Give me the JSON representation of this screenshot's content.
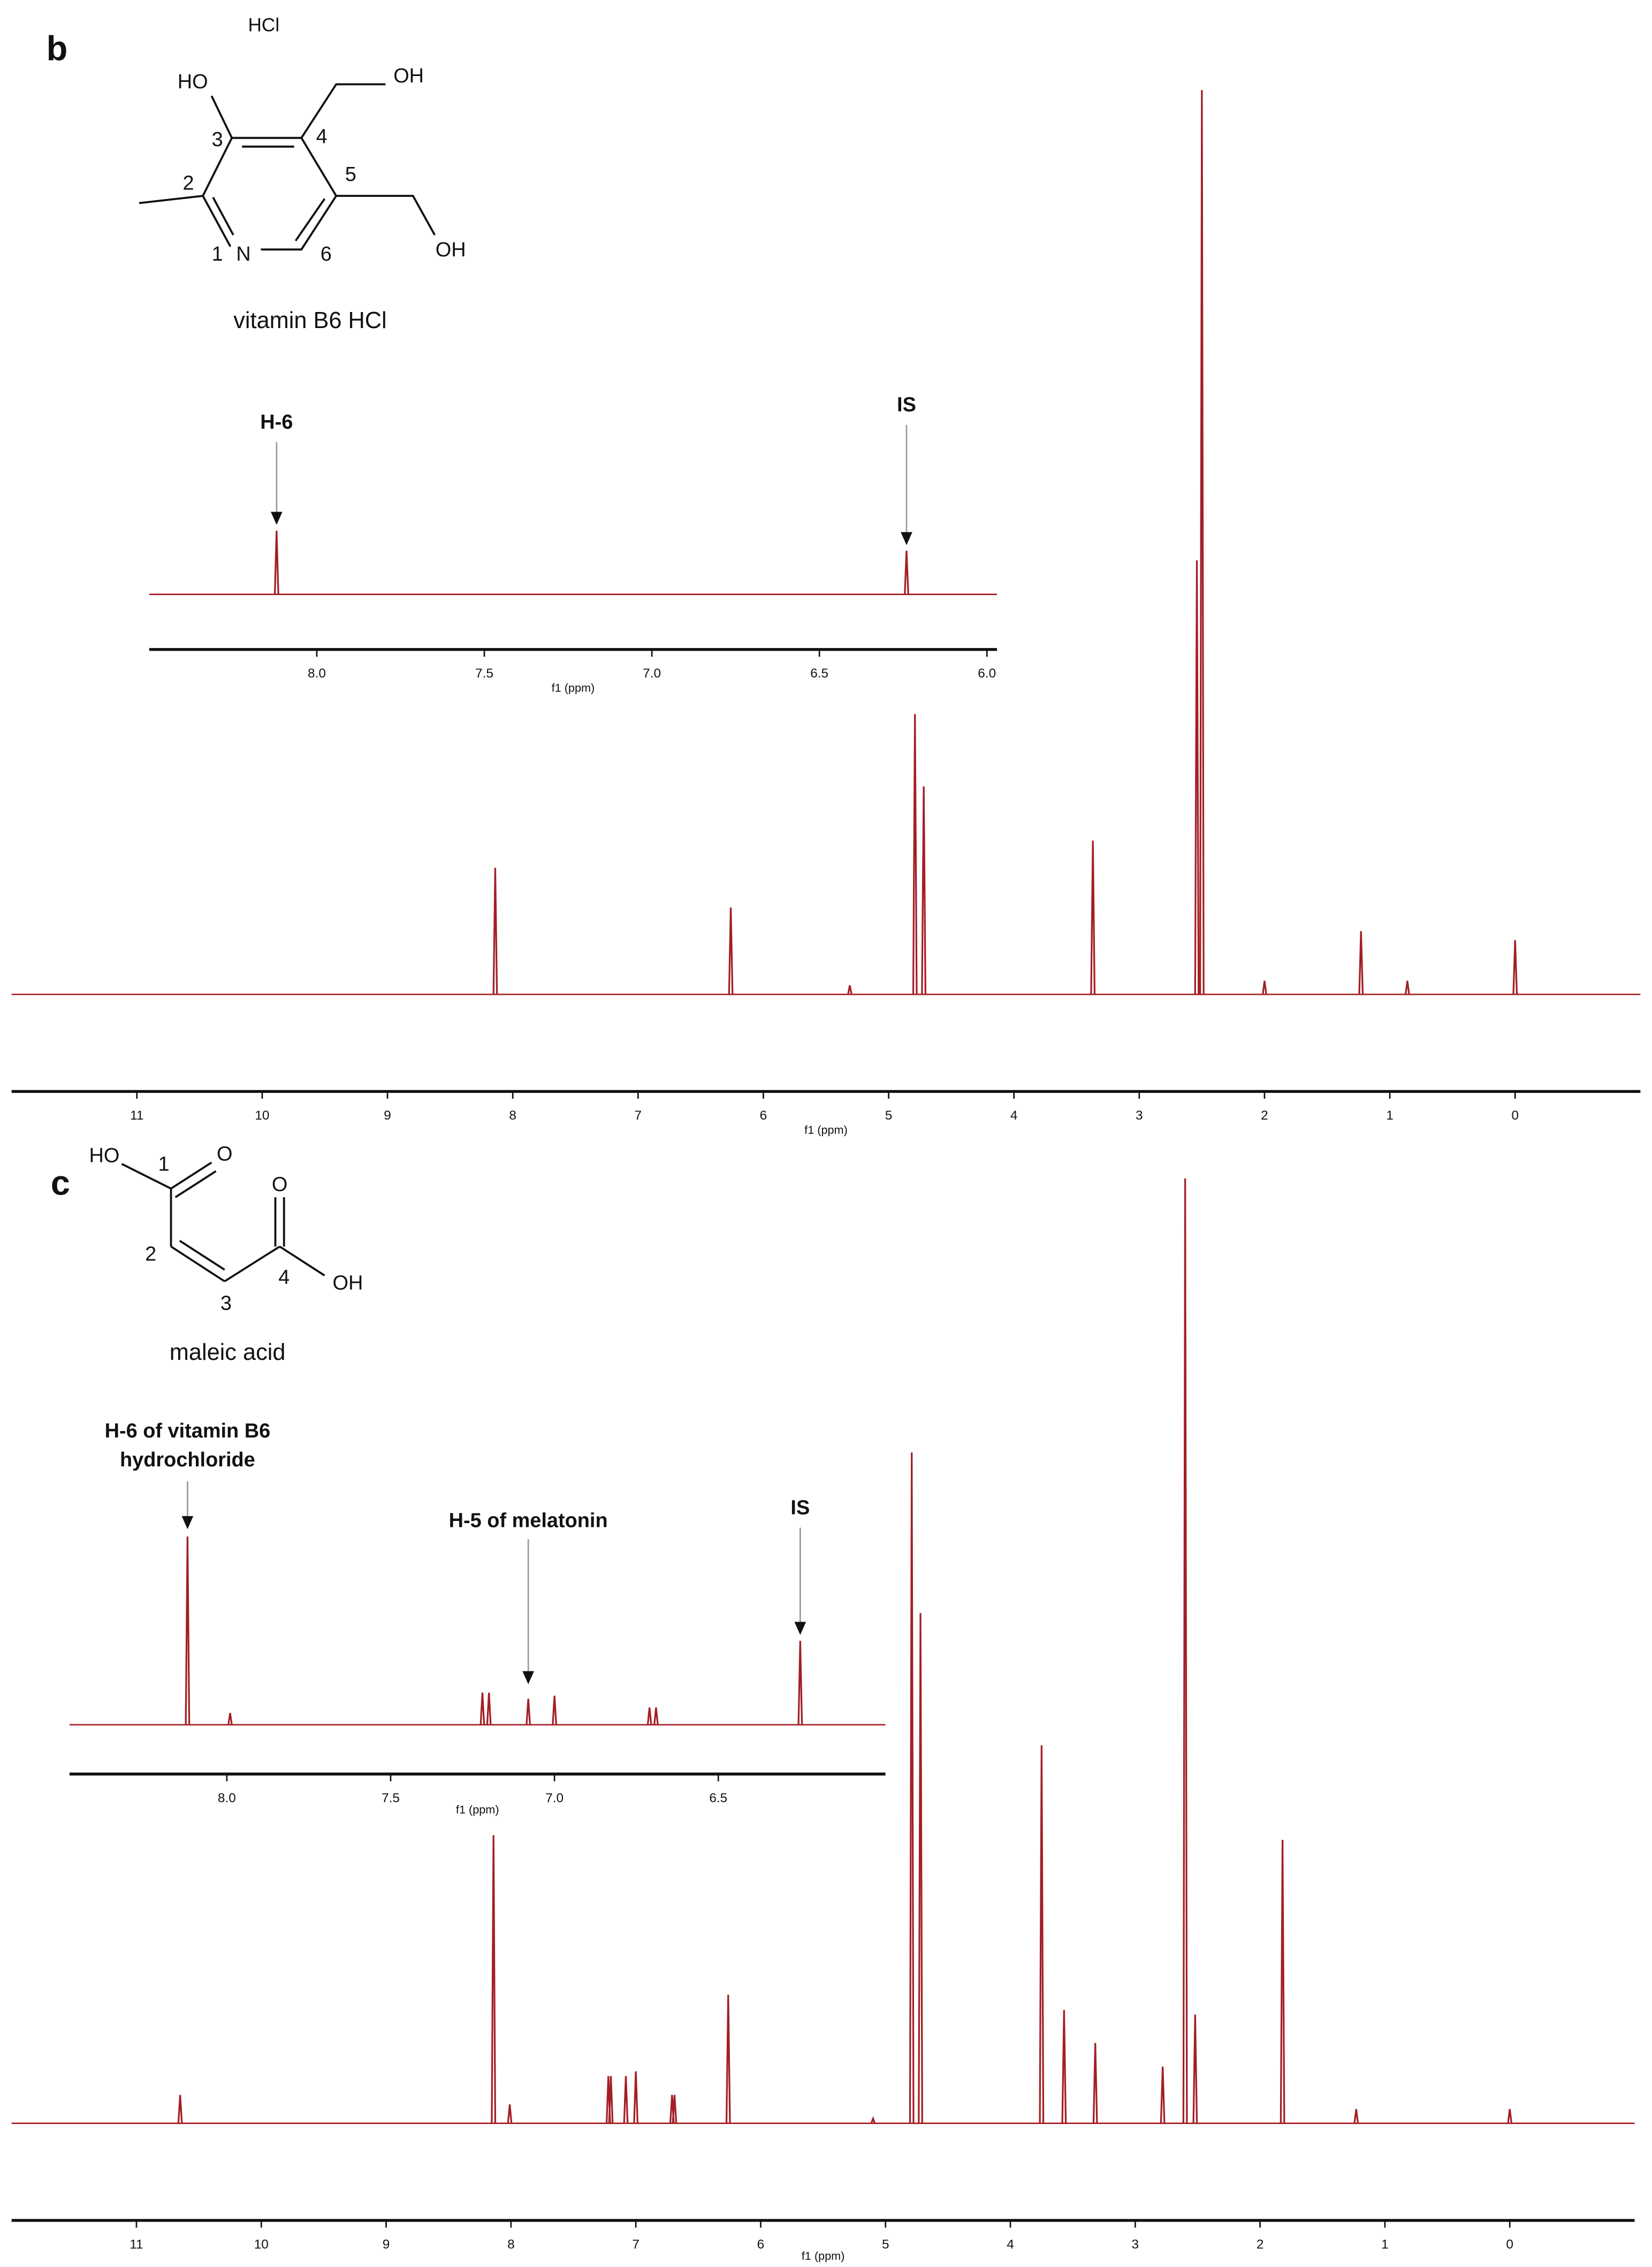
{
  "figure": {
    "panels": [
      {
        "label": "b",
        "compound": "vitamin B6 HCl",
        "atom_labels": [
          "HCl",
          "HO",
          "OH",
          "OH",
          "3",
          "4",
          "2",
          "5",
          "1",
          "N",
          "6"
        ]
      },
      {
        "label": "c",
        "compound": "maleic acid",
        "atom_labels": [
          "HO",
          "1",
          "O",
          "O",
          "2",
          "4",
          "OH",
          "3"
        ]
      }
    ]
  },
  "chart_data": [
    {
      "type": "spectrum",
      "xlabel": "f1 (ppm)",
      "xlim": [
        12,
        -1
      ],
      "xticks": [
        11,
        10,
        9,
        8,
        7,
        6,
        5,
        4,
        3,
        2,
        1,
        0
      ],
      "ylim": [
        0,
        100
      ],
      "color": "#a31f24",
      "x": [
        8.14,
        6.26,
        5.31,
        4.79,
        4.72,
        3.37,
        2.54,
        2.5,
        2.0,
        1.23,
        0.86,
        0.0
      ],
      "values": [
        14,
        9.6,
        1,
        31,
        23,
        17,
        48,
        100,
        1.5,
        7,
        1.5,
        6
      ]
    },
    {
      "type": "spectrum",
      "xlabel": "f1 (ppm)",
      "xlim": [
        8.5,
        5.97
      ],
      "xticks": [
        {
          "value": 8,
          "label": "8.0"
        },
        7.5,
        {
          "value": 7,
          "label": "7.0"
        },
        6.5,
        {
          "value": 6,
          "label": "6.0"
        }
      ],
      "ylim": [
        0,
        100
      ],
      "color": "#a31f24",
      "x": [
        8.12,
        6.24
      ],
      "values": [
        14,
        9.6
      ],
      "annotations": [
        {
          "lines": [
            "H-6"
          ],
          "x": 8.12
        },
        {
          "lines": [
            "IS"
          ],
          "x": 6.24
        }
      ]
    },
    {
      "type": "spectrum",
      "xlabel": "f1 (ppm)",
      "xlim": [
        12,
        -1
      ],
      "xticks": [
        11,
        10,
        9,
        8,
        7,
        6,
        5,
        4,
        3,
        2,
        1,
        0
      ],
      "ylim": [
        0,
        100
      ],
      "color": "#a31f24",
      "x": [
        10.65,
        8.14,
        8.01,
        7.22,
        7.2,
        7.08,
        7.0,
        6.71,
        6.69,
        6.26,
        5.1,
        4.79,
        4.72,
        3.75,
        3.57,
        3.32,
        2.78,
        2.6,
        2.52,
        1.82,
        1.23,
        0.0
      ],
      "values": [
        3,
        30.5,
        2,
        5,
        5,
        5,
        5.5,
        3,
        3,
        13.6,
        0.5,
        71,
        54,
        40,
        12,
        8.5,
        6,
        100,
        11.5,
        30,
        1.5,
        1.5
      ]
    },
    {
      "type": "spectrum",
      "xlabel": "f1 (ppm)",
      "xlim": [
        8.48,
        5.99
      ],
      "xticks": [
        {
          "value": 8,
          "label": "8.0"
        },
        7.5,
        {
          "value": 7,
          "label": "7.0"
        },
        6.5
      ],
      "ylim": [
        0,
        100
      ],
      "color": "#a31f24",
      "x": [
        8.12,
        7.99,
        7.22,
        7.2,
        7.08,
        7.0,
        6.71,
        6.69,
        6.25
      ],
      "values": [
        30.5,
        1.9,
        5.2,
        5.2,
        4.2,
        4.7,
        2.8,
        2.8,
        13.6
      ],
      "annotations": [
        {
          "lines": [
            "H-6 of vitamin B6",
            "hydrochloride"
          ],
          "x": 8.12
        },
        {
          "lines": [
            "H-5 of melatonin"
          ],
          "x": 7.08
        },
        {
          "lines": [
            "IS"
          ],
          "x": 6.25
        }
      ]
    }
  ]
}
